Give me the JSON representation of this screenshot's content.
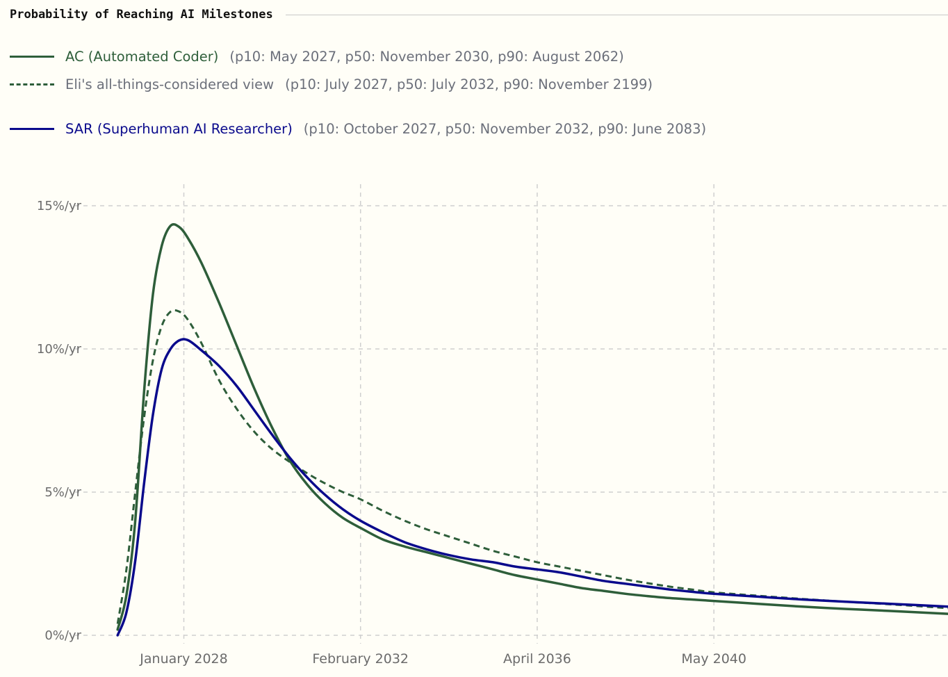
{
  "header": {
    "title": "Probability of Reaching AI Milestones"
  },
  "legend": [
    {
      "name": "AC (Automated Coder)",
      "stats": "(p10: May 2027, p50: November 2030, p90: August 2062)",
      "color": "#2e5e3a",
      "dashed": false,
      "name_color": "#2e5e3a"
    },
    {
      "name": "Eli's all-things-considered view",
      "stats": "(p10: July 2027, p50: July 2032, p90: November 2199)",
      "color": "#2e5e3a",
      "dashed": true,
      "name_color": "#6b6f7a"
    },
    {
      "name": "SAR (Superhuman AI Researcher)",
      "stats": "(p10: October 2027, p50: November 2032, p90: June 2083)",
      "color": "#0a0a8c",
      "dashed": false,
      "name_color": "#0a0a8c"
    }
  ],
  "chart_data": {
    "type": "line",
    "title": "Probability of Reaching AI Milestones",
    "xlabel": "",
    "ylabel": "",
    "x_unit": "year",
    "xlim": [
      2026.45,
      2045.3
    ],
    "ylim": [
      0,
      15.5
    ],
    "y_ticks": [
      {
        "value": 0,
        "label": "0%/yr"
      },
      {
        "value": 5,
        "label": "5%/yr"
      },
      {
        "value": 10,
        "label": "10%/yr"
      },
      {
        "value": 15,
        "label": "15%/yr"
      }
    ],
    "x_ticks": [
      {
        "value": 2028.0,
        "label": "January 2028"
      },
      {
        "value": 2032.0,
        "label": "February 2032"
      },
      {
        "value": 2036.0,
        "label": "April 2036"
      },
      {
        "value": 2040.0,
        "label": "May 2040"
      }
    ],
    "grid": true,
    "legend_position": "top-left",
    "series": [
      {
        "name": "AC (Automated Coder)",
        "color": "#2e5e3a",
        "dashed": false,
        "points": [
          [
            2026.5,
            0.2
          ],
          [
            2026.7,
            1.4
          ],
          [
            2026.9,
            4.0
          ],
          [
            2027.1,
            8.5
          ],
          [
            2027.3,
            11.9
          ],
          [
            2027.5,
            13.6
          ],
          [
            2027.7,
            14.3
          ],
          [
            2027.9,
            14.25
          ],
          [
            2028.1,
            13.85
          ],
          [
            2028.4,
            13.0
          ],
          [
            2028.8,
            11.6
          ],
          [
            2029.2,
            10.1
          ],
          [
            2029.6,
            8.6
          ],
          [
            2030.0,
            7.25
          ],
          [
            2030.4,
            6.1
          ],
          [
            2030.8,
            5.25
          ],
          [
            2031.2,
            4.6
          ],
          [
            2031.6,
            4.1
          ],
          [
            2032.0,
            3.75
          ],
          [
            2032.5,
            3.35
          ],
          [
            2033.0,
            3.1
          ],
          [
            2033.5,
            2.9
          ],
          [
            2034.0,
            2.7
          ],
          [
            2034.5,
            2.5
          ],
          [
            2035.0,
            2.3
          ],
          [
            2035.5,
            2.1
          ],
          [
            2036.0,
            1.95
          ],
          [
            2036.5,
            1.8
          ],
          [
            2037.0,
            1.65
          ],
          [
            2037.5,
            1.55
          ],
          [
            2038.0,
            1.45
          ],
          [
            2038.5,
            1.37
          ],
          [
            2039.0,
            1.3
          ],
          [
            2039.5,
            1.25
          ],
          [
            2040.0,
            1.2
          ],
          [
            2041.0,
            1.1
          ],
          [
            2042.0,
            1.0
          ],
          [
            2043.0,
            0.92
          ],
          [
            2044.0,
            0.85
          ],
          [
            2045.3,
            0.75
          ]
        ]
      },
      {
        "name": "Eli's all-things-considered view",
        "color": "#2e5e3a",
        "dashed": true,
        "points": [
          [
            2026.5,
            0.4
          ],
          [
            2026.7,
            2.3
          ],
          [
            2026.9,
            5.0
          ],
          [
            2027.1,
            7.6
          ],
          [
            2027.3,
            9.6
          ],
          [
            2027.5,
            10.8
          ],
          [
            2027.7,
            11.3
          ],
          [
            2027.9,
            11.3
          ],
          [
            2028.1,
            11.0
          ],
          [
            2028.4,
            10.2
          ],
          [
            2028.8,
            8.9
          ],
          [
            2029.2,
            7.9
          ],
          [
            2029.6,
            7.1
          ],
          [
            2030.0,
            6.5
          ],
          [
            2030.4,
            6.05
          ],
          [
            2030.8,
            5.65
          ],
          [
            2031.2,
            5.3
          ],
          [
            2031.6,
            5.0
          ],
          [
            2032.0,
            4.75
          ],
          [
            2032.5,
            4.35
          ],
          [
            2033.0,
            4.0
          ],
          [
            2033.5,
            3.7
          ],
          [
            2034.0,
            3.45
          ],
          [
            2034.5,
            3.2
          ],
          [
            2035.0,
            2.95
          ],
          [
            2035.5,
            2.75
          ],
          [
            2036.0,
            2.55
          ],
          [
            2036.5,
            2.4
          ],
          [
            2037.0,
            2.25
          ],
          [
            2037.5,
            2.1
          ],
          [
            2038.0,
            1.95
          ],
          [
            2038.5,
            1.82
          ],
          [
            2039.0,
            1.7
          ],
          [
            2039.5,
            1.6
          ],
          [
            2040.0,
            1.5
          ],
          [
            2041.0,
            1.38
          ],
          [
            2042.0,
            1.27
          ],
          [
            2043.0,
            1.17
          ],
          [
            2044.0,
            1.08
          ],
          [
            2045.3,
            0.95
          ]
        ]
      },
      {
        "name": "SAR (Superhuman AI Researcher)",
        "color": "#0a0a8c",
        "dashed": false,
        "points": [
          [
            2026.5,
            0.0
          ],
          [
            2026.7,
            0.8
          ],
          [
            2026.9,
            2.6
          ],
          [
            2027.1,
            5.3
          ],
          [
            2027.3,
            7.7
          ],
          [
            2027.5,
            9.3
          ],
          [
            2027.7,
            10.0
          ],
          [
            2027.9,
            10.3
          ],
          [
            2028.1,
            10.3
          ],
          [
            2028.4,
            9.95
          ],
          [
            2028.8,
            9.4
          ],
          [
            2029.2,
            8.7
          ],
          [
            2029.6,
            7.85
          ],
          [
            2030.0,
            7.0
          ],
          [
            2030.4,
            6.2
          ],
          [
            2030.8,
            5.5
          ],
          [
            2031.2,
            4.9
          ],
          [
            2031.6,
            4.4
          ],
          [
            2032.0,
            4.0
          ],
          [
            2032.5,
            3.6
          ],
          [
            2033.0,
            3.25
          ],
          [
            2033.5,
            3.0
          ],
          [
            2034.0,
            2.8
          ],
          [
            2034.5,
            2.65
          ],
          [
            2035.0,
            2.55
          ],
          [
            2035.5,
            2.4
          ],
          [
            2036.0,
            2.3
          ],
          [
            2036.5,
            2.2
          ],
          [
            2037.0,
            2.05
          ],
          [
            2037.5,
            1.9
          ],
          [
            2038.0,
            1.8
          ],
          [
            2038.5,
            1.7
          ],
          [
            2039.0,
            1.6
          ],
          [
            2039.5,
            1.52
          ],
          [
            2040.0,
            1.45
          ],
          [
            2041.0,
            1.35
          ],
          [
            2042.0,
            1.25
          ],
          [
            2043.0,
            1.17
          ],
          [
            2044.0,
            1.1
          ],
          [
            2045.3,
            1.0
          ]
        ]
      }
    ]
  }
}
